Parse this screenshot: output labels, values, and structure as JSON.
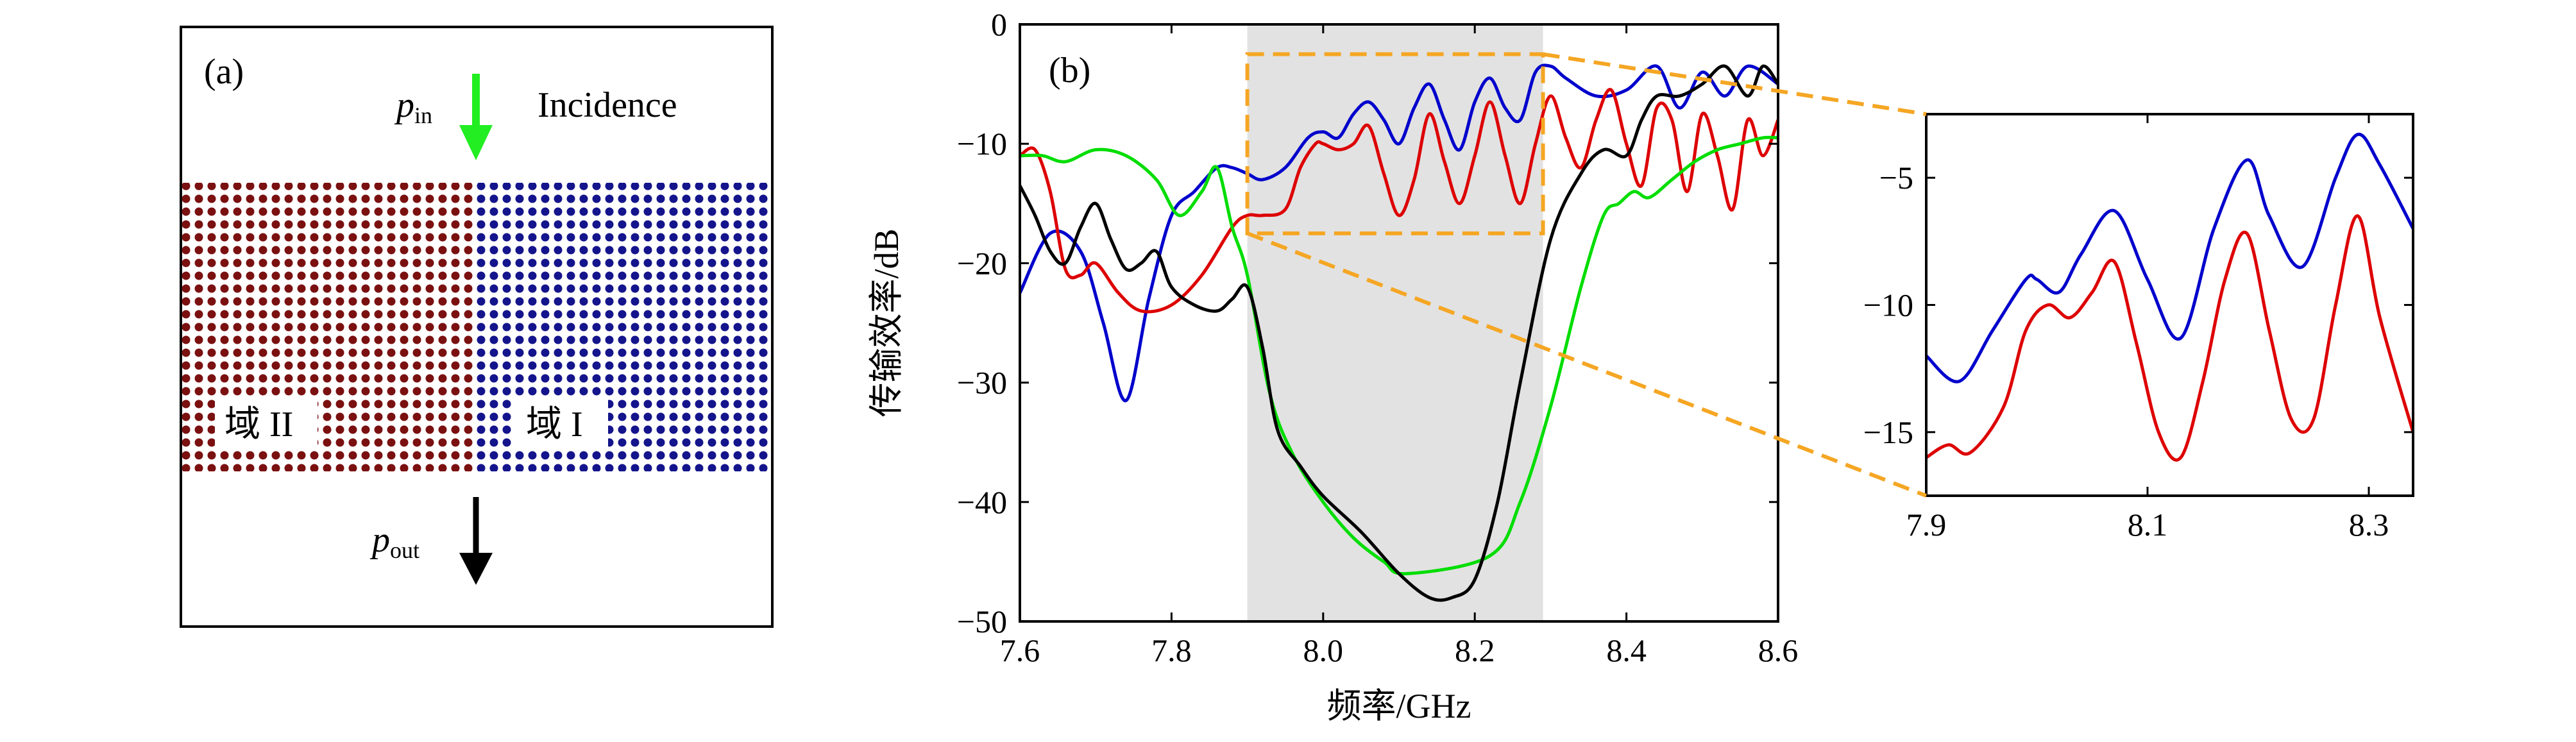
{
  "panel_a": {
    "label": "(a)",
    "p_in": "p",
    "p_in_sub": "in",
    "incidence": "Incidence",
    "p_out": "p",
    "p_out_sub": "out",
    "domain_left": "域 II",
    "domain_right": "域 I",
    "colors": {
      "domain_left_dots": "#7a1010",
      "domain_right_dots": "#14148c",
      "arrow_in": "#22ee22",
      "arrow_out": "#000000"
    }
  },
  "chart_data": [
    {
      "panel": "(b)",
      "type": "line",
      "xlabel": "频率/GHz",
      "ylabel": "传输效率/dB",
      "xlim": [
        7.6,
        8.6
      ],
      "ylim": [
        -50,
        0
      ],
      "xticks": [
        7.6,
        7.8,
        8.0,
        8.2,
        8.4,
        8.6
      ],
      "yticks": [
        0,
        -10,
        -20,
        -30,
        -40,
        -50
      ],
      "highlight_band": [
        7.9,
        8.29
      ],
      "zoom_box": {
        "x": [
          7.9,
          8.29
        ],
        "y": [
          -17.5,
          -2.5
        ]
      },
      "series": [
        {
          "color": "#0000cc",
          "x": [
            7.6,
            7.64,
            7.68,
            7.71,
            7.74,
            7.77,
            7.8,
            7.83,
            7.86,
            7.88,
            7.9,
            7.92,
            7.95,
            7.98,
            8.0,
            8.02,
            8.04,
            8.06,
            8.08,
            8.1,
            8.12,
            8.14,
            8.16,
            8.18,
            8.2,
            8.22,
            8.24,
            8.26,
            8.28,
            8.3,
            8.32,
            8.36,
            8.4,
            8.44,
            8.47,
            8.5,
            8.53,
            8.56,
            8.6
          ],
          "y": [
            -22.5,
            -17.5,
            -19,
            -25,
            -31.5,
            -23,
            -16,
            -14,
            -12,
            -12,
            -12.5,
            -13,
            -12,
            -9.5,
            -9,
            -9.5,
            -7.5,
            -6.5,
            -8,
            -10,
            -7,
            -5,
            -8,
            -10.5,
            -6.5,
            -4.5,
            -7,
            -8,
            -4,
            -3.5,
            -4.5,
            -6,
            -5.5,
            -3.5,
            -7,
            -4,
            -6,
            -3.5,
            -5
          ]
        },
        {
          "color": "#dd0000",
          "x": [
            7.6,
            7.62,
            7.64,
            7.66,
            7.68,
            7.7,
            7.73,
            7.76,
            7.8,
            7.84,
            7.88,
            7.9,
            7.92,
            7.95,
            7.97,
            7.99,
            8.0,
            8.02,
            8.04,
            8.06,
            8.08,
            8.1,
            8.12,
            8.14,
            8.16,
            8.18,
            8.2,
            8.22,
            8.24,
            8.26,
            8.28,
            8.3,
            8.32,
            8.34,
            8.36,
            8.38,
            8.4,
            8.42,
            8.44,
            8.46,
            8.48,
            8.5,
            8.52,
            8.54,
            8.56,
            8.58,
            8.6
          ],
          "y": [
            -11,
            -10.5,
            -14,
            -20.5,
            -21,
            -20,
            -22.5,
            -24,
            -23.5,
            -21,
            -17,
            -16,
            -16,
            -15.5,
            -12,
            -10,
            -10,
            -10.5,
            -10,
            -8.5,
            -12.5,
            -16,
            -13,
            -7.5,
            -11.5,
            -15,
            -11,
            -6.5,
            -11,
            -15,
            -10,
            -6,
            -9.5,
            -12,
            -8,
            -5.5,
            -10,
            -13.5,
            -7,
            -8,
            -14,
            -7.5,
            -11,
            -15.5,
            -8,
            -11,
            -8
          ]
        },
        {
          "color": "#00dd00",
          "x": [
            7.6,
            7.63,
            7.66,
            7.7,
            7.74,
            7.78,
            7.81,
            7.84,
            7.86,
            7.88,
            7.9,
            7.93,
            7.96,
            8.0,
            8.04,
            8.08,
            8.11,
            8.22,
            8.26,
            8.3,
            8.34,
            8.37,
            8.39,
            8.41,
            8.43,
            8.46,
            8.49,
            8.52,
            8.55,
            8.58,
            8.6
          ],
          "y": [
            -11,
            -11,
            -11.5,
            -10.5,
            -11,
            -13,
            -16,
            -14,
            -12,
            -17,
            -21,
            -31,
            -36,
            -40,
            -43,
            -45,
            -46,
            -44.5,
            -40,
            -32,
            -22,
            -16,
            -15,
            -14,
            -14.5,
            -13,
            -11.5,
            -10.5,
            -10,
            -9.5,
            -9.5
          ]
        },
        {
          "color": "#000000",
          "x": [
            7.6,
            7.62,
            7.64,
            7.66,
            7.68,
            7.7,
            7.72,
            7.74,
            7.76,
            7.78,
            7.8,
            7.83,
            7.86,
            7.88,
            7.9,
            7.92,
            7.94,
            7.97,
            8.0,
            8.05,
            8.1,
            8.14,
            8.17,
            8.2,
            8.23,
            8.26,
            8.3,
            8.34,
            8.37,
            8.4,
            8.42,
            8.44,
            8.47,
            8.5,
            8.53,
            8.56,
            8.58,
            8.6
          ],
          "y": [
            -13.5,
            -16,
            -19,
            -20,
            -17,
            -15,
            -18,
            -20.5,
            -20,
            -19,
            -22,
            -23.5,
            -24,
            -23,
            -22,
            -27,
            -34,
            -37,
            -39.5,
            -42.5,
            -46,
            -48,
            -48,
            -46.5,
            -40,
            -30,
            -18,
            -12.5,
            -10.5,
            -11,
            -8,
            -6,
            -6,
            -5,
            -3.5,
            -6,
            -3.5,
            -5
          ]
        }
      ]
    },
    {
      "panel": "zoom",
      "type": "line",
      "xlim": [
        7.9,
        8.34
      ],
      "ylim": [
        -17.5,
        -2.5
      ],
      "xticks": [
        7.9,
        8.1,
        8.3
      ],
      "yticks": [
        -5,
        -10,
        -15
      ],
      "series": [
        {
          "color": "#0000cc",
          "x": [
            7.9,
            7.93,
            7.96,
            7.99,
            8.0,
            8.02,
            8.04,
            8.07,
            8.1,
            8.13,
            8.16,
            8.19,
            8.21,
            8.24,
            8.27,
            8.29,
            8.31,
            8.34
          ],
          "y": [
            -12,
            -13,
            -11,
            -9,
            -9,
            -9.5,
            -8,
            -6.3,
            -9,
            -11.3,
            -7,
            -4.3,
            -6.5,
            -8.5,
            -5,
            -3.3,
            -4.5,
            -7
          ]
        },
        {
          "color": "#dd0000",
          "x": [
            7.9,
            7.92,
            7.94,
            7.97,
            7.99,
            8.01,
            8.03,
            8.05,
            8.07,
            8.09,
            8.11,
            8.13,
            8.15,
            8.17,
            8.19,
            8.21,
            8.23,
            8.25,
            8.27,
            8.29,
            8.31,
            8.34
          ],
          "y": [
            -16,
            -15.5,
            -15.8,
            -14,
            -11,
            -10,
            -10.5,
            -9.5,
            -8.3,
            -11.5,
            -15,
            -16,
            -13,
            -9,
            -7.2,
            -11,
            -14.5,
            -14.5,
            -10,
            -6.5,
            -10.5,
            -15
          ]
        }
      ]
    }
  ]
}
